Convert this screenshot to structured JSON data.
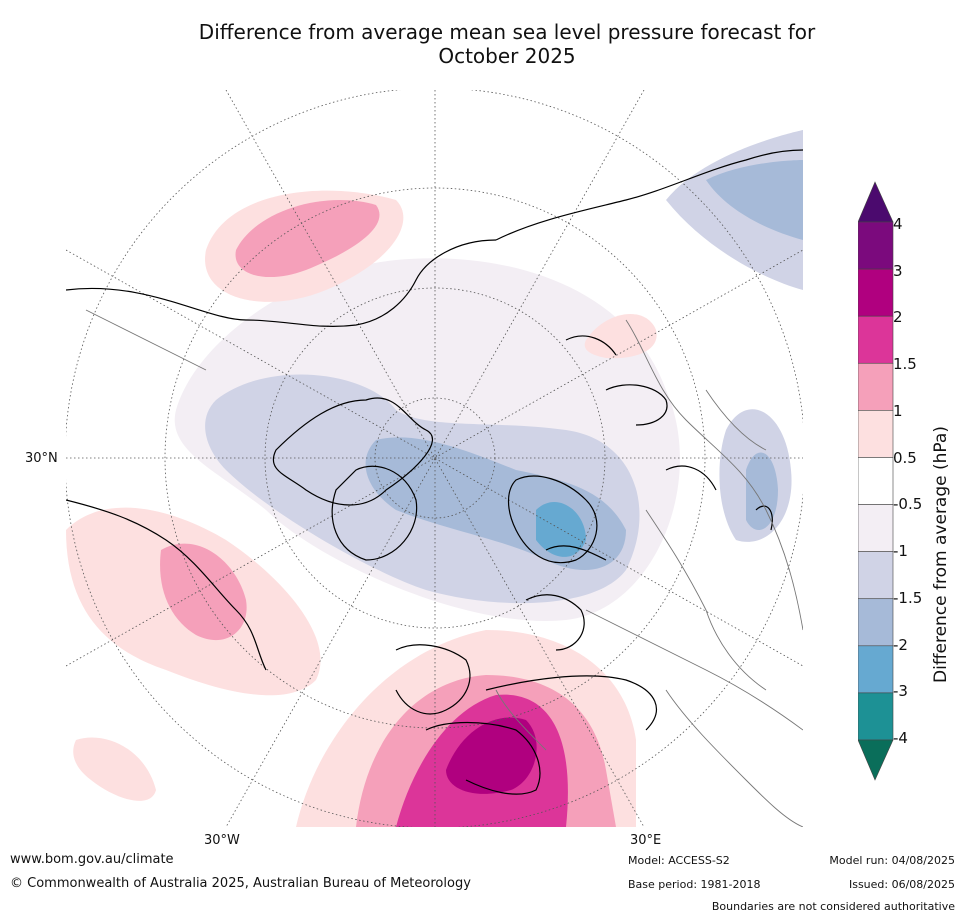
{
  "title_line1": "Difference from average mean sea level pressure forecast for",
  "title_line2": "October 2025",
  "map": {
    "lat_label": "30°N",
    "lon_label_w": "30°W",
    "lon_label_e": "30°E"
  },
  "colorbar": {
    "title": "Difference from average (hPa)",
    "ticks": [
      "4",
      "3",
      "2",
      "1.5",
      "1",
      "0.5",
      "-0.5",
      "-1",
      "-1.5",
      "-2",
      "-3",
      "-4"
    ],
    "colors": [
      "#4b0a6e",
      "#7b0a7d",
      "#b0007f",
      "#dc3599",
      "#f5a0ba",
      "#fde0e0",
      "#ffffff",
      "#f3eef4",
      "#d0d3e6",
      "#a6bad8",
      "#66a9d1",
      "#1d9195",
      "#0a6e5a"
    ]
  },
  "footer": {
    "website": "www.bom.gov.au/climate",
    "copyright": "© Commonwealth of Australia 2025, Australian Bureau of Meteorology",
    "model": "Model: ACCESS-S2",
    "base_period": "Base period: 1981-2018",
    "model_run": "Model run: 04/08/2025",
    "issued": "Issued: 06/08/2025",
    "disclaimer": "Boundaries are not considered authoritative"
  }
}
